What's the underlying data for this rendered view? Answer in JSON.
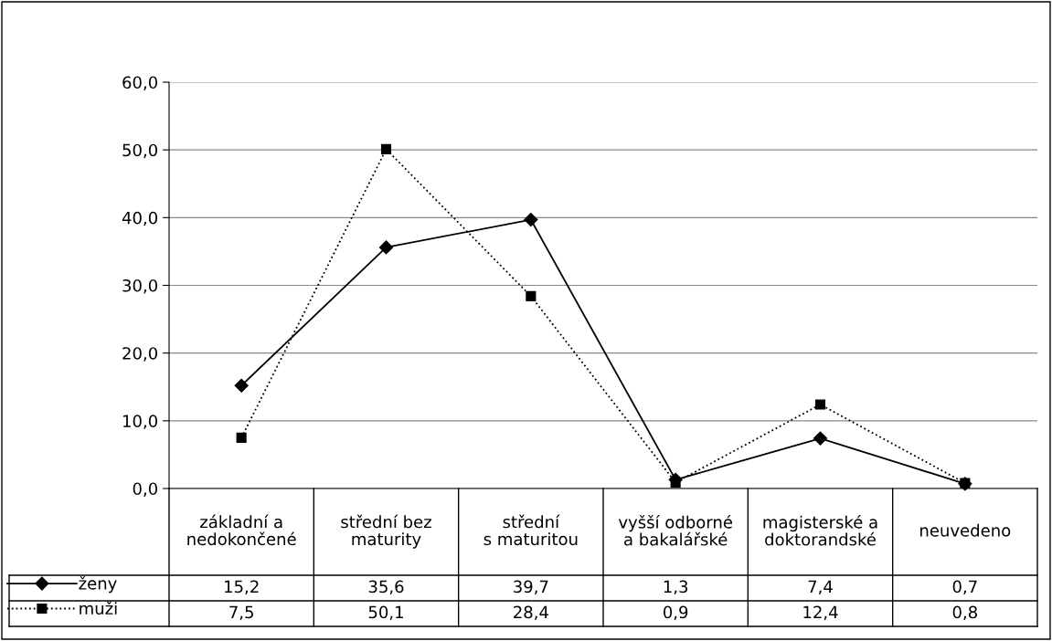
{
  "chart_data": {
    "type": "line",
    "categories": [
      "základní a\nnedokončené",
      "střední bez\nmaturity",
      "střední\ns maturitou",
      "vyšší odborné\na bakalářské",
      "magisterské a\ndoktorandské",
      "neuvedeno"
    ],
    "series": [
      {
        "name": "ženy",
        "color": "#000000",
        "marker": "diamond",
        "line_style": "solid",
        "values": [
          15.2,
          35.6,
          39.7,
          1.3,
          7.4,
          0.7
        ],
        "value_labels": [
          "15,2",
          "35,6",
          "39,7",
          "1,3",
          "7,4",
          "0,7"
        ]
      },
      {
        "name": "muži",
        "color": "#000000",
        "marker": "square",
        "line_style": "dotted",
        "values": [
          7.5,
          50.1,
          28.4,
          0.9,
          12.4,
          0.8
        ],
        "value_labels": [
          "7,5",
          "50,1",
          "28,4",
          "0,9",
          "12,4",
          "0,8"
        ]
      }
    ],
    "ylim": [
      0,
      60
    ],
    "yticks": [
      {
        "value": 0,
        "label": "0,0"
      },
      {
        "value": 10,
        "label": "10,0"
      },
      {
        "value": 20,
        "label": "20,0"
      },
      {
        "value": 30,
        "label": "30,0"
      },
      {
        "value": 40,
        "label": "40,0"
      },
      {
        "value": 50,
        "label": "50,0"
      },
      {
        "value": 60,
        "label": "60,0"
      }
    ],
    "grid": "y",
    "legend": "bottom left"
  }
}
